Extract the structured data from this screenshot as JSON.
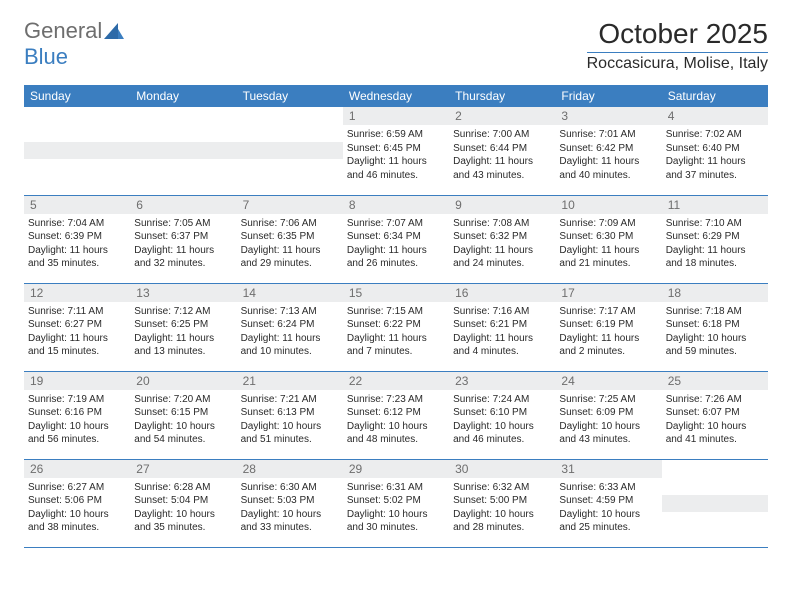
{
  "logo": {
    "part1": "General",
    "part2": "Blue"
  },
  "title": "October 2025",
  "subtitle": "Roccasicura, Molise, Italy",
  "colors": {
    "header_bg": "#3b7ec0",
    "header_text": "#ffffff",
    "daynum_bg": "#ecedee",
    "daynum_text": "#6e6e6e",
    "border": "#3b7ec0",
    "logo_gray": "#6e6e6e",
    "logo_blue": "#3b7ec0"
  },
  "font_sizes": {
    "title": 28,
    "subtitle": 16,
    "header": 12,
    "daynum": 12,
    "content": 10
  },
  "weekdays": [
    "Sunday",
    "Monday",
    "Tuesday",
    "Wednesday",
    "Thursday",
    "Friday",
    "Saturday"
  ],
  "weeks": [
    [
      null,
      null,
      null,
      {
        "n": "1",
        "sr": "6:59 AM",
        "ss": "6:45 PM",
        "dl": "11 hours and 46 minutes."
      },
      {
        "n": "2",
        "sr": "7:00 AM",
        "ss": "6:44 PM",
        "dl": "11 hours and 43 minutes."
      },
      {
        "n": "3",
        "sr": "7:01 AM",
        "ss": "6:42 PM",
        "dl": "11 hours and 40 minutes."
      },
      {
        "n": "4",
        "sr": "7:02 AM",
        "ss": "6:40 PM",
        "dl": "11 hours and 37 minutes."
      }
    ],
    [
      {
        "n": "5",
        "sr": "7:04 AM",
        "ss": "6:39 PM",
        "dl": "11 hours and 35 minutes."
      },
      {
        "n": "6",
        "sr": "7:05 AM",
        "ss": "6:37 PM",
        "dl": "11 hours and 32 minutes."
      },
      {
        "n": "7",
        "sr": "7:06 AM",
        "ss": "6:35 PM",
        "dl": "11 hours and 29 minutes."
      },
      {
        "n": "8",
        "sr": "7:07 AM",
        "ss": "6:34 PM",
        "dl": "11 hours and 26 minutes."
      },
      {
        "n": "9",
        "sr": "7:08 AM",
        "ss": "6:32 PM",
        "dl": "11 hours and 24 minutes."
      },
      {
        "n": "10",
        "sr": "7:09 AM",
        "ss": "6:30 PM",
        "dl": "11 hours and 21 minutes."
      },
      {
        "n": "11",
        "sr": "7:10 AM",
        "ss": "6:29 PM",
        "dl": "11 hours and 18 minutes."
      }
    ],
    [
      {
        "n": "12",
        "sr": "7:11 AM",
        "ss": "6:27 PM",
        "dl": "11 hours and 15 minutes."
      },
      {
        "n": "13",
        "sr": "7:12 AM",
        "ss": "6:25 PM",
        "dl": "11 hours and 13 minutes."
      },
      {
        "n": "14",
        "sr": "7:13 AM",
        "ss": "6:24 PM",
        "dl": "11 hours and 10 minutes."
      },
      {
        "n": "15",
        "sr": "7:15 AM",
        "ss": "6:22 PM",
        "dl": "11 hours and 7 minutes."
      },
      {
        "n": "16",
        "sr": "7:16 AM",
        "ss": "6:21 PM",
        "dl": "11 hours and 4 minutes."
      },
      {
        "n": "17",
        "sr": "7:17 AM",
        "ss": "6:19 PM",
        "dl": "11 hours and 2 minutes."
      },
      {
        "n": "18",
        "sr": "7:18 AM",
        "ss": "6:18 PM",
        "dl": "10 hours and 59 minutes."
      }
    ],
    [
      {
        "n": "19",
        "sr": "7:19 AM",
        "ss": "6:16 PM",
        "dl": "10 hours and 56 minutes."
      },
      {
        "n": "20",
        "sr": "7:20 AM",
        "ss": "6:15 PM",
        "dl": "10 hours and 54 minutes."
      },
      {
        "n": "21",
        "sr": "7:21 AM",
        "ss": "6:13 PM",
        "dl": "10 hours and 51 minutes."
      },
      {
        "n": "22",
        "sr": "7:23 AM",
        "ss": "6:12 PM",
        "dl": "10 hours and 48 minutes."
      },
      {
        "n": "23",
        "sr": "7:24 AM",
        "ss": "6:10 PM",
        "dl": "10 hours and 46 minutes."
      },
      {
        "n": "24",
        "sr": "7:25 AM",
        "ss": "6:09 PM",
        "dl": "10 hours and 43 minutes."
      },
      {
        "n": "25",
        "sr": "7:26 AM",
        "ss": "6:07 PM",
        "dl": "10 hours and 41 minutes."
      }
    ],
    [
      {
        "n": "26",
        "sr": "6:27 AM",
        "ss": "5:06 PM",
        "dl": "10 hours and 38 minutes."
      },
      {
        "n": "27",
        "sr": "6:28 AM",
        "ss": "5:04 PM",
        "dl": "10 hours and 35 minutes."
      },
      {
        "n": "28",
        "sr": "6:30 AM",
        "ss": "5:03 PM",
        "dl": "10 hours and 33 minutes."
      },
      {
        "n": "29",
        "sr": "6:31 AM",
        "ss": "5:02 PM",
        "dl": "10 hours and 30 minutes."
      },
      {
        "n": "30",
        "sr": "6:32 AM",
        "ss": "5:00 PM",
        "dl": "10 hours and 28 minutes."
      },
      {
        "n": "31",
        "sr": "6:33 AM",
        "ss": "4:59 PM",
        "dl": "10 hours and 25 minutes."
      },
      null
    ]
  ],
  "labels": {
    "sunrise": "Sunrise:",
    "sunset": "Sunset:",
    "daylight": "Daylight:"
  }
}
